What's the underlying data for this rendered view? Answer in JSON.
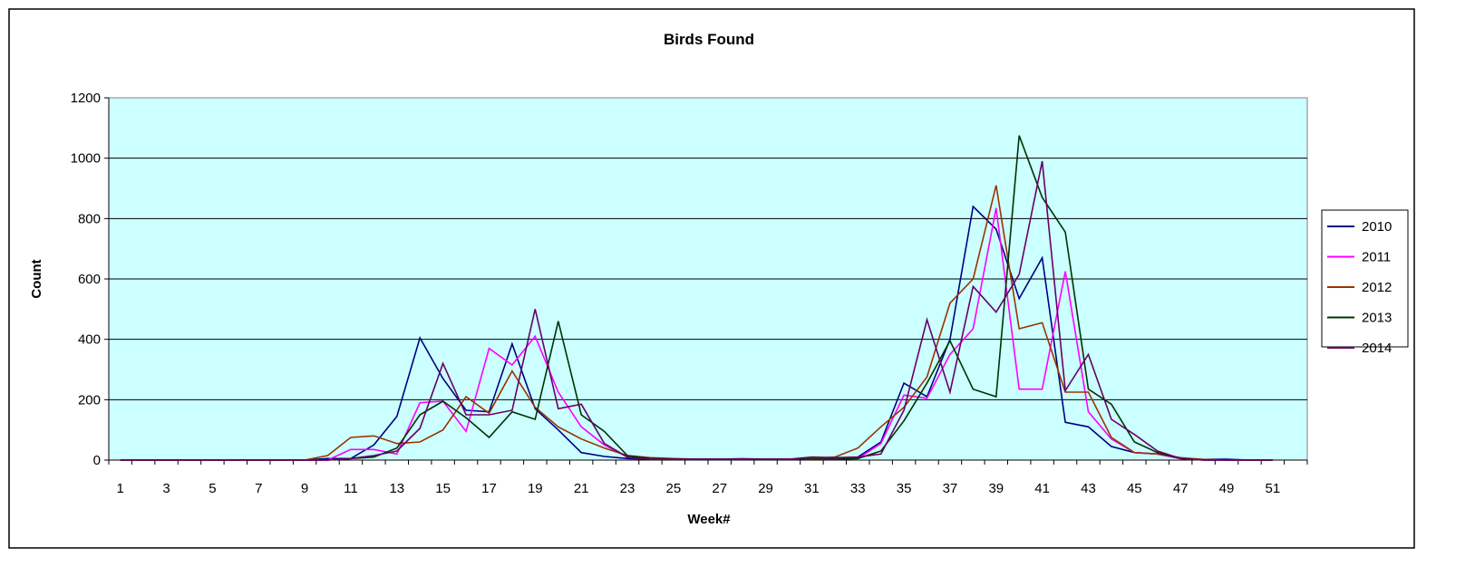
{
  "chart_data": {
    "type": "line",
    "title": "Birds Found",
    "xlabel": "Week#",
    "ylabel": "Count",
    "ylim": [
      0,
      1200
    ],
    "yticks": [
      0,
      200,
      400,
      600,
      800,
      1000,
      1200
    ],
    "x": [
      1,
      2,
      3,
      4,
      5,
      6,
      7,
      8,
      9,
      10,
      11,
      12,
      13,
      14,
      15,
      16,
      17,
      18,
      19,
      20,
      21,
      22,
      23,
      24,
      25,
      26,
      27,
      28,
      29,
      30,
      31,
      32,
      33,
      34,
      35,
      36,
      37,
      38,
      39,
      40,
      41,
      42,
      43,
      44,
      45,
      46,
      47,
      48,
      49,
      50,
      51,
      52
    ],
    "xtick_labels": [
      "1",
      "3",
      "5",
      "7",
      "9",
      "11",
      "13",
      "15",
      "17",
      "19",
      "21",
      "23",
      "25",
      "27",
      "29",
      "31",
      "33",
      "35",
      "37",
      "39",
      "41",
      "43",
      "45",
      "47",
      "49",
      "51"
    ],
    "grid": "horizontal",
    "legend_position": "right",
    "series": [
      {
        "name": "2010",
        "color": "#000080",
        "values": [
          0,
          0,
          0,
          0,
          0,
          0,
          0,
          0,
          0,
          5,
          5,
          50,
          145,
          405,
          270,
          165,
          160,
          385,
          170,
          100,
          25,
          12,
          5,
          3,
          2,
          2,
          2,
          2,
          3,
          2,
          5,
          5,
          10,
          60,
          255,
          210,
          400,
          840,
          765,
          535,
          670,
          125,
          110,
          45,
          25,
          20,
          5,
          2,
          3,
          0,
          0,
          null
        ]
      },
      {
        "name": "2011",
        "color": "#FF00FF",
        "values": [
          0,
          0,
          0,
          0,
          0,
          0,
          0,
          0,
          0,
          0,
          35,
          35,
          20,
          190,
          195,
          95,
          370,
          315,
          410,
          225,
          110,
          50,
          10,
          3,
          3,
          3,
          3,
          5,
          3,
          3,
          3,
          3,
          5,
          55,
          215,
          205,
          350,
          435,
          835,
          235,
          235,
          625,
          160,
          70,
          25,
          20,
          5,
          0,
          0,
          0,
          0,
          null
        ]
      },
      {
        "name": "2012",
        "color": "#993300",
        "values": [
          0,
          0,
          0,
          0,
          0,
          0,
          0,
          0,
          0,
          15,
          75,
          80,
          55,
          60,
          100,
          210,
          155,
          295,
          175,
          110,
          70,
          40,
          15,
          8,
          5,
          3,
          3,
          3,
          3,
          3,
          5,
          10,
          40,
          110,
          175,
          275,
          520,
          600,
          910,
          435,
          455,
          225,
          225,
          75,
          25,
          20,
          8,
          2,
          0,
          0,
          0,
          null
        ]
      },
      {
        "name": "2013",
        "color": "#003300",
        "values": [
          0,
          0,
          0,
          0,
          0,
          0,
          0,
          0,
          0,
          0,
          5,
          10,
          40,
          150,
          195,
          140,
          75,
          160,
          135,
          460,
          150,
          95,
          15,
          5,
          3,
          3,
          3,
          3,
          3,
          3,
          3,
          3,
          5,
          30,
          130,
          255,
          395,
          235,
          210,
          1075,
          870,
          755,
          235,
          185,
          60,
          25,
          5,
          0,
          0,
          0,
          0,
          null
        ]
      },
      {
        "name": "2014",
        "color": "#660066",
        "values": [
          0,
          0,
          0,
          0,
          0,
          0,
          0,
          0,
          0,
          0,
          5,
          15,
          30,
          105,
          320,
          150,
          150,
          165,
          500,
          170,
          185,
          55,
          10,
          3,
          3,
          3,
          3,
          3,
          3,
          3,
          10,
          8,
          10,
          20,
          165,
          465,
          225,
          575,
          490,
          615,
          990,
          230,
          350,
          135,
          85,
          30,
          5,
          0,
          0,
          0,
          0,
          null
        ]
      }
    ]
  }
}
